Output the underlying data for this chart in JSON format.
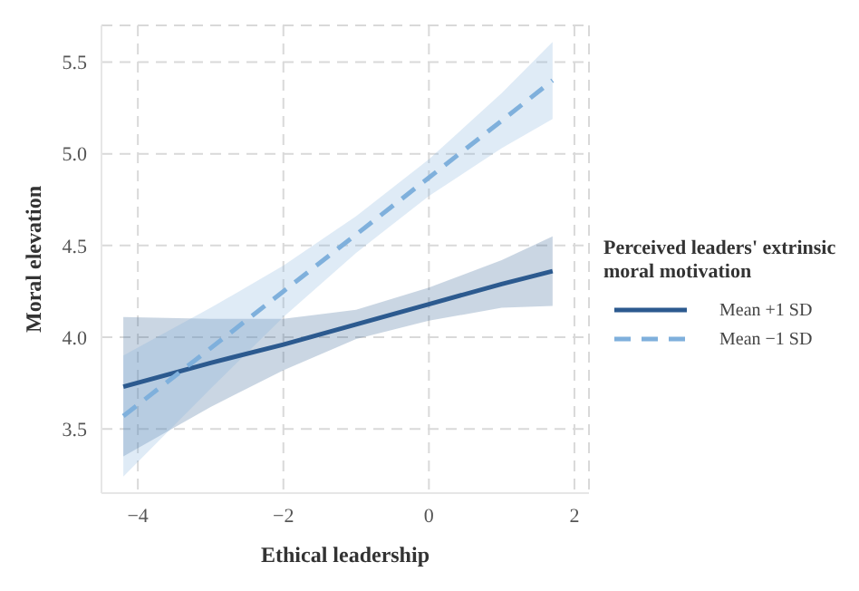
{
  "chart_data": {
    "type": "line",
    "xlabel": "Ethical leadership",
    "ylabel": "Moral elevation",
    "legend_title": "Perceived leaders' extrinsic moral motivation",
    "x": [
      -4.2,
      -3,
      -2,
      -1,
      0,
      1,
      1.7
    ],
    "series": [
      {
        "name": "Mean +1 SD",
        "color": "#2c5a8f",
        "line_style": "solid",
        "values": [
          3.73,
          3.86,
          3.96,
          4.07,
          4.18,
          4.29,
          4.36
        ],
        "lower": [
          3.35,
          3.62,
          3.82,
          3.99,
          4.09,
          4.16,
          4.17
        ],
        "upper": [
          4.11,
          4.1,
          4.1,
          4.15,
          4.27,
          4.42,
          4.55
        ]
      },
      {
        "name": "Mean −1 SD",
        "color": "#7fb0dc",
        "line_style": "dashed",
        "values": [
          3.57,
          3.94,
          4.25,
          4.56,
          4.87,
          5.18,
          5.4
        ],
        "lower": [
          3.24,
          3.72,
          4.11,
          4.46,
          4.77,
          5.03,
          5.19
        ],
        "upper": [
          3.9,
          4.16,
          4.39,
          4.66,
          4.97,
          5.33,
          5.61
        ]
      }
    ],
    "xlim": [
      -4.5,
      2.2
    ],
    "xticks": [
      -4,
      -2,
      0,
      2
    ],
    "ylim": [
      3.15,
      5.7
    ],
    "yticks": [
      3.5,
      {
        "value": 4,
        "label": "4.0"
      },
      4.5,
      {
        "value": 5,
        "label": "5.0"
      },
      5.5
    ],
    "grid": true,
    "legend": "right",
    "marker": "none"
  }
}
